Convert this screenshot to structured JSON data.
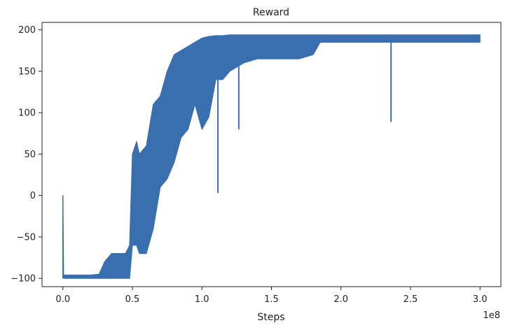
{
  "chart_data": {
    "type": "line",
    "title": "Reward",
    "xlabel": "Steps",
    "ylabel": "",
    "x_scale_label": "1e8",
    "xlim": [
      -0.15,
      3.15
    ],
    "ylim": [
      -110,
      209
    ],
    "xticks": [
      0.0,
      0.5,
      1.0,
      1.5,
      2.0,
      2.5,
      3.0
    ],
    "xtick_labels": [
      "0.0",
      "0.5",
      "1.0",
      "1.5",
      "2.0",
      "2.5",
      "3.0"
    ],
    "yticks": [
      -100,
      -50,
      0,
      50,
      100,
      150,
      200
    ],
    "ytick_labels": [
      "−100",
      "−50",
      "0",
      "50",
      "100",
      "150",
      "200"
    ],
    "grid": false,
    "legend": "none",
    "color": "#3a6faf",
    "series": [
      {
        "name": "",
        "x": [
          0.0,
          0.005,
          0.01,
          0.1,
          0.2,
          0.26,
          0.3,
          0.35,
          0.4,
          0.45,
          0.48,
          0.5,
          0.53,
          0.55,
          0.6,
          0.65,
          0.7,
          0.75,
          0.8,
          0.85,
          0.9,
          0.95,
          1.0,
          1.05,
          1.1,
          1.15,
          1.2,
          1.3,
          1.4,
          1.5,
          1.6,
          1.7,
          1.8,
          1.85,
          1.9,
          2.0,
          2.2,
          2.36,
          2.4,
          2.6,
          2.8,
          3.0
        ],
        "low": [
          0,
          -100,
          -100,
          -100,
          -100,
          -100,
          -100,
          -100,
          -100,
          -100,
          -100,
          -60,
          -60,
          -70,
          -70,
          -40,
          10,
          20,
          40,
          70,
          80,
          110,
          80,
          95,
          140,
          140,
          150,
          160,
          165,
          165,
          165,
          165,
          170,
          185,
          185,
          185,
          185,
          185,
          185,
          185,
          185,
          185
        ],
        "high": [
          0,
          -96,
          -96,
          -96,
          -96,
          -95,
          -80,
          -70,
          -70,
          -70,
          -60,
          50,
          65,
          50,
          60,
          110,
          120,
          150,
          170,
          175,
          180,
          185,
          190,
          192,
          193,
          193,
          194,
          194,
          194,
          194,
          194,
          194,
          194,
          194,
          194,
          194,
          194,
          194,
          194,
          194,
          194,
          194
        ]
      }
    ],
    "spikes": [
      {
        "x": 1.115,
        "y": 3
      },
      {
        "x": 1.265,
        "y": 80
      },
      {
        "x": 2.36,
        "y": 89
      }
    ]
  }
}
